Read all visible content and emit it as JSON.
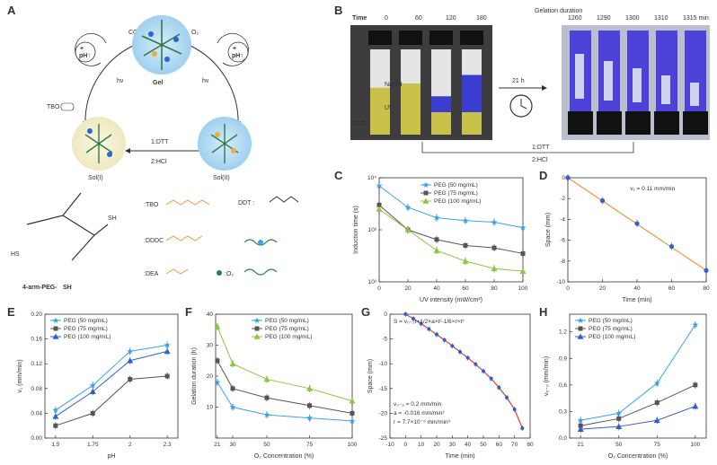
{
  "panels": {
    "A": {
      "letter": "A",
      "cycle": {
        "gel": "Gel",
        "sol1": "Sol(I)",
        "sol2": "Sol(II)",
        "co2": "CO₂",
        "o2": "O₂",
        "hv_left": "hν",
        "hv_right": "hν",
        "ph_left": "pH↑",
        "ph_right": "pH↑",
        "plus_left": "+",
        "plus_right": "+",
        "tbo_tag": "TBO",
        "dtt_hcl": [
          "1:DTT",
          "2:HCl"
        ]
      },
      "legend": {
        "polymer_label": "4-arm-PEG-",
        "polymer_suffix": "SH",
        "sh": "HS",
        "sh2": "SH",
        "items": [
          {
            "symbol": "TBO",
            "label": ":TBO"
          },
          {
            "symbol": "DDDC",
            "label": ":DDDC"
          },
          {
            "symbol": "DEA",
            "label": ":DEA"
          },
          {
            "symbol": "DTT",
            "label": "DDT :"
          },
          {
            "symbol": "O2",
            "label": ":O₂"
          }
        ]
      }
    },
    "B": {
      "letter": "B",
      "time_label": "Time",
      "times": [
        "0",
        "60",
        "120",
        "180"
      ],
      "gelation_label": "Gelation duration",
      "times2": [
        "1260",
        "1290",
        "1300",
        "1310",
        "1315 min"
      ],
      "naoh": "NaOH",
      "uv": "UV",
      "tbo": "TBO",
      "h21": "21 h",
      "dtt_hcl": [
        "1:DTT",
        "2:HCl"
      ]
    },
    "C": {
      "letter": "C"
    },
    "D": {
      "letter": "D"
    },
    "E": {
      "letter": "E"
    },
    "F": {
      "letter": "F"
    },
    "G": {
      "letter": "G"
    },
    "H": {
      "letter": "H"
    }
  },
  "colors": {
    "peg50": "#3aa3e8",
    "peg75": "#555555",
    "peg100": "#8dc63f",
    "blue2": "#2f5fd0",
    "orange": "#e89a3c",
    "red": "#e23a3a"
  },
  "chart_data": [
    {
      "id": "C",
      "type": "line",
      "scale_y": "log",
      "xlabel": "UV intensity (mW/cm²)",
      "ylabel": "Induction time (s)",
      "x": [
        0,
        20,
        40,
        60,
        80,
        100
      ],
      "xlim": [
        0,
        100
      ],
      "ylim": [
        100,
        10000
      ],
      "yticks": [
        "10²",
        "10³",
        "10⁴"
      ],
      "series": [
        {
          "name": "PEG (50 mg/mL)",
          "values": [
            7000,
            2700,
            1700,
            1500,
            1400,
            1100
          ],
          "marker": "star",
          "color": "#3aa3e8"
        },
        {
          "name": "PEG (75 mg/mL)",
          "values": [
            3000,
            1000,
            650,
            500,
            450,
            350
          ],
          "marker": "square",
          "color": "#555555"
        },
        {
          "name": "PEG (100 mg/mL)",
          "values": [
            2500,
            1000,
            400,
            250,
            180,
            160
          ],
          "marker": "triangle",
          "color": "#8dc63f"
        }
      ]
    },
    {
      "id": "D",
      "type": "scatter",
      "xlabel": "Time (min)",
      "ylabel": "Space (mm)",
      "x": [
        0,
        20,
        40,
        60,
        80
      ],
      "xlim": [
        0,
        80
      ],
      "ylim": [
        -10,
        0
      ],
      "yticks": [
        0,
        -2,
        -4,
        -6,
        -8,
        -10
      ],
      "annotation": "v₁ = 0.11 mm/min",
      "series": [
        {
          "name": "",
          "values": [
            0,
            -2.2,
            -4.4,
            -6.6,
            -8.9
          ],
          "color": "#2f5fd0",
          "fit_color": "#e89a3c"
        }
      ]
    },
    {
      "id": "E",
      "type": "line",
      "xlabel": "pH",
      "ylabel": "v₁ (mm/min)",
      "categories": [
        "1.5",
        "1.75",
        "2",
        "2.3"
      ],
      "ylim": [
        0,
        0.2
      ],
      "yticks": [
        "0.00",
        "0.04",
        "0.08",
        "0.12",
        "0.16",
        "0.20"
      ],
      "series": [
        {
          "name": "PEG (50 mg/mL)",
          "values": [
            0.045,
            0.085,
            0.14,
            0.15
          ],
          "marker": "star",
          "color": "#3aa3e8"
        },
        {
          "name": "PEG (75 mg/mL)",
          "values": [
            0.02,
            0.04,
            0.095,
            0.1
          ],
          "marker": "square",
          "color": "#555555"
        },
        {
          "name": "PEG (100 mg/mL)",
          "values": [
            0.035,
            0.075,
            0.125,
            0.14
          ],
          "marker": "triangle",
          "color": "#2f5fd0"
        }
      ]
    },
    {
      "id": "F",
      "type": "line",
      "xlabel": "O₂ Concentration (%)",
      "ylabel": "Gelation duration (h)",
      "x": [
        21,
        30,
        50,
        75,
        100
      ],
      "xlim": [
        20,
        100
      ],
      "ylim": [
        0,
        40
      ],
      "yticks": [
        10,
        20,
        30,
        40
      ],
      "series": [
        {
          "name": "PEG (50 mg/mL)",
          "values": [
            18,
            10,
            7.5,
            6.5,
            5.5
          ],
          "marker": "star",
          "color": "#3aa3e8"
        },
        {
          "name": "PEG (75 mg/mL)",
          "values": [
            25,
            16,
            13,
            10.5,
            8
          ],
          "marker": "square",
          "color": "#555555"
        },
        {
          "name": "PEG (100 mg/mL)",
          "values": [
            36,
            24,
            19,
            16,
            12
          ],
          "marker": "triangle",
          "color": "#8dc63f"
        }
      ]
    },
    {
      "id": "G",
      "type": "scatter",
      "xlabel": "Time (min)",
      "ylabel": "Space (mm)",
      "xlim": [
        -10,
        80
      ],
      "ylim": [
        -25,
        0
      ],
      "xticks": [
        -10,
        0,
        10,
        20,
        30,
        40,
        50,
        60,
        70,
        80
      ],
      "yticks": [
        0,
        -5,
        -10,
        -15,
        -20,
        -25
      ],
      "equation": "S = v₀₋₂t+1/2×a×t²-1/6×r×t³",
      "params": [
        "v₀₋₂ = 0.2 mm/min",
        "a = -0.016 mm/min²",
        "r = 7.7×10⁻⁵ mm/min³"
      ],
      "series": [
        {
          "name": "",
          "x": [
            0,
            5,
            10,
            15,
            20,
            25,
            30,
            35,
            40,
            45,
            50,
            55,
            60,
            65,
            70,
            75
          ],
          "values": [
            0,
            -0.9,
            -1.9,
            -3.0,
            -4.1,
            -5.2,
            -6.4,
            -7.6,
            -8.8,
            -10.1,
            -11.5,
            -13.0,
            -14.8,
            -16.8,
            -19.2,
            -23.0
          ],
          "color": "#2f5fd0",
          "fit_color": "#e23a3a"
        }
      ]
    },
    {
      "id": "H",
      "type": "line",
      "xlabel": "O₂ Concentration (%)",
      "ylabel": "v₀₋₂ (mm/min)",
      "categories": [
        "21",
        "50",
        "75",
        "100"
      ],
      "ylim": [
        0,
        1.4
      ],
      "yticks": [
        "0.0",
        "0.3",
        "0.6",
        "0.9",
        "1.2"
      ],
      "series": [
        {
          "name": "PEG (50 mg/mL)",
          "values": [
            0.2,
            0.28,
            0.62,
            1.28
          ],
          "marker": "star",
          "color": "#3aa3e8"
        },
        {
          "name": "PEG (75 mg/mL)",
          "values": [
            0.14,
            0.22,
            0.4,
            0.6
          ],
          "marker": "square",
          "color": "#555555"
        },
        {
          "name": "PEG (100 mg/mL)",
          "values": [
            0.1,
            0.13,
            0.2,
            0.36
          ],
          "marker": "triangle",
          "color": "#2f5fd0"
        }
      ]
    }
  ]
}
